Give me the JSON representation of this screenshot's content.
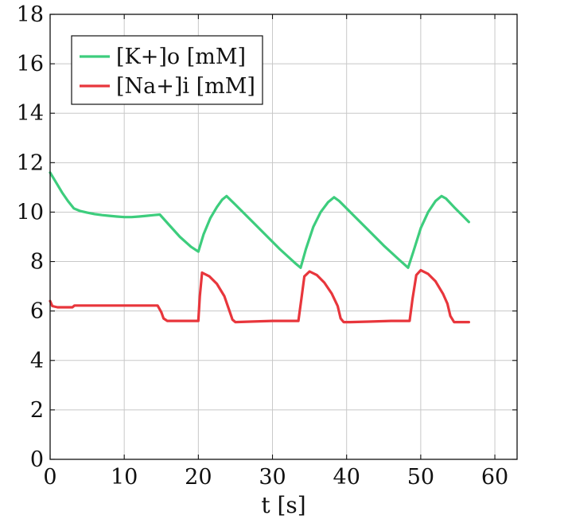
{
  "chart_data": {
    "type": "line",
    "xlabel": "t [s]",
    "ylabel": "",
    "xlim": [
      0,
      63
    ],
    "ylim": [
      0,
      18
    ],
    "xticks": [
      0,
      10,
      20,
      30,
      40,
      50,
      60
    ],
    "yticks": [
      0,
      2,
      4,
      6,
      8,
      10,
      12,
      14,
      16,
      18
    ],
    "grid": true,
    "legend_position": "top-left",
    "series": [
      {
        "name": "[K+]o [mM]",
        "color": "#3dcd7d",
        "x": [
          0,
          0.8,
          1.6,
          2.4,
          3.2,
          4.0,
          5.0,
          6.0,
          7.0,
          8.0,
          9.0,
          10.0,
          11.0,
          12.0,
          13.0,
          14.0,
          14.8,
          16.0,
          17.5,
          19.0,
          20.0,
          20.7,
          21.6,
          22.5,
          23.2,
          23.8,
          25.0,
          27.0,
          29.0,
          31.0,
          33.0,
          33.8,
          34.5,
          35.5,
          36.5,
          37.5,
          38.3,
          39.0,
          41.0,
          43.0,
          45.0,
          47.0,
          48.3,
          49.0,
          50.0,
          51.0,
          52.0,
          52.8,
          53.4,
          54.5,
          55.5,
          56.5
        ],
        "values": [
          11.6,
          11.2,
          10.8,
          10.45,
          10.15,
          10.05,
          9.98,
          9.92,
          9.88,
          9.85,
          9.82,
          9.8,
          9.8,
          9.82,
          9.85,
          9.88,
          9.9,
          9.5,
          9.0,
          8.6,
          8.4,
          9.1,
          9.75,
          10.2,
          10.5,
          10.65,
          10.3,
          9.7,
          9.1,
          8.5,
          7.95,
          7.75,
          8.5,
          9.4,
          10.0,
          10.4,
          10.6,
          10.45,
          9.85,
          9.25,
          8.65,
          8.1,
          7.75,
          8.4,
          9.35,
          10.0,
          10.45,
          10.65,
          10.55,
          10.2,
          9.9,
          9.6
        ]
      },
      {
        "name": "[Na+]i [mM]",
        "color": "#e8363c",
        "x": [
          0,
          0.3,
          1.0,
          2.0,
          3.0,
          3.3,
          5.0,
          7.0,
          9.0,
          11.0,
          13.0,
          14.5,
          15.0,
          15.3,
          15.8,
          17.0,
          19.0,
          20.0,
          20.2,
          20.5,
          21.5,
          22.5,
          23.5,
          24.2,
          24.6,
          25.0,
          27.0,
          30.0,
          33.5,
          33.9,
          34.3,
          35.0,
          36.0,
          37.0,
          38.0,
          38.8,
          39.2,
          39.6,
          40.5,
          43.0,
          46.0,
          48.5,
          48.9,
          49.4,
          50.0,
          51.0,
          52.0,
          53.0,
          53.6,
          54.0,
          54.5,
          56.5
        ],
        "values": [
          6.4,
          6.2,
          6.15,
          6.15,
          6.15,
          6.22,
          6.22,
          6.22,
          6.22,
          6.22,
          6.22,
          6.22,
          5.95,
          5.7,
          5.6,
          5.6,
          5.6,
          5.6,
          6.6,
          7.55,
          7.4,
          7.1,
          6.6,
          6.0,
          5.65,
          5.55,
          5.57,
          5.6,
          5.6,
          6.5,
          7.4,
          7.6,
          7.45,
          7.15,
          6.7,
          6.2,
          5.7,
          5.55,
          5.55,
          5.57,
          5.6,
          5.6,
          6.5,
          7.45,
          7.65,
          7.5,
          7.2,
          6.7,
          6.3,
          5.8,
          5.55,
          5.55
        ]
      }
    ]
  }
}
